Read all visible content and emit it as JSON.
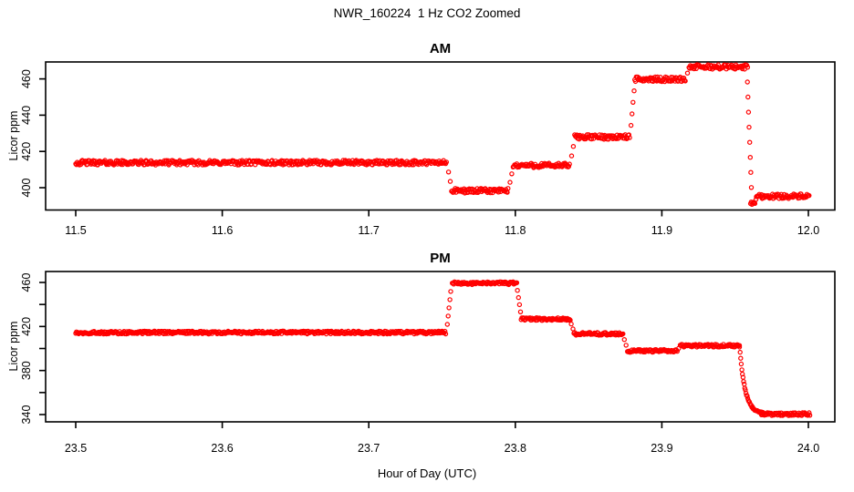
{
  "title": "NWR_160224  1 Hz CO2 Zoomed",
  "xlabel": "Hour of Day (UTC)",
  "style": {
    "point_color": "#FF0000",
    "axis_color": "#000000",
    "background": "#FFFFFF",
    "marker": "open-circle"
  },
  "chart_data": [
    {
      "type": "scatter",
      "panel_title": "AM",
      "ylabel": "Licor ppm",
      "xlim": [
        11.5,
        12.0
      ],
      "ylim": [
        387.7,
        469.3
      ],
      "grid": false,
      "legend": false,
      "xticks": [
        "11.5",
        "11.6",
        "11.7",
        "11.8",
        "11.9",
        "12.0"
      ],
      "yticks": [
        {
          "value": 400,
          "label": "400"
        },
        {
          "value": 420,
          "label": "420"
        },
        {
          "value": 440,
          "label": "440"
        },
        {
          "value": 460,
          "label": "460"
        }
      ],
      "segments_ppm": [
        {
          "t0": 11.5,
          "t1": 11.7535,
          "ppm": 413.8
        },
        {
          "t0": 11.7565,
          "t1": 11.7955,
          "ppm": 398.3
        },
        {
          "t0": 11.7985,
          "t1": 11.8375,
          "ppm": 412.3
        },
        {
          "t0": 11.8405,
          "t1": 11.8785,
          "ppm": 428.0
        },
        {
          "t0": 11.8815,
          "t1": 11.9165,
          "ppm": 459.8
        },
        {
          "t0": 11.9185,
          "t1": 11.959,
          "ppm": 466.6
        },
        {
          "t0": 11.9605,
          "t1": 11.964,
          "ppm": 391.8
        },
        {
          "t0": 11.9645,
          "t1": 12.001,
          "ppm": 395.3
        }
      ],
      "decay": null
    },
    {
      "type": "scatter",
      "panel_title": "PM",
      "ylabel": "Licor ppm",
      "xlim": [
        23.5,
        24.0
      ],
      "ylim": [
        333.4,
        469.9
      ],
      "grid": false,
      "legend": false,
      "xticks": [
        "23.5",
        "23.6",
        "23.7",
        "23.8",
        "23.9",
        "24.0"
      ],
      "yticks": [
        {
          "value": 340,
          "label": "340"
        },
        {
          "value": 360,
          "label": ""
        },
        {
          "value": 380,
          "label": "380"
        },
        {
          "value": 400,
          "label": ""
        },
        {
          "value": 420,
          "label": "420"
        },
        {
          "value": 440,
          "label": ""
        },
        {
          "value": 460,
          "label": "460"
        }
      ],
      "segments_ppm": [
        {
          "t0": 23.5,
          "t1": 23.7525,
          "ppm": 414.5
        },
        {
          "t0": 23.757,
          "t1": 23.801,
          "ppm": 459.3
        },
        {
          "t0": 23.804,
          "t1": 23.8375,
          "ppm": 426.8
        },
        {
          "t0": 23.84,
          "t1": 23.8735,
          "ppm": 413.3
        },
        {
          "t0": 23.8765,
          "t1": 23.9105,
          "ppm": 397.8
        },
        {
          "t0": 23.9125,
          "t1": 23.953,
          "ppm": 402.6,
          "join": "none"
        },
        {
          "t0": 23.968,
          "t1": 24.001,
          "ppm": 340.4
        }
      ],
      "decay": {
        "t_start": 23.953,
        "t_end": 23.969,
        "from_ppm": 402.6,
        "to_ppm": 340.4,
        "tau_hours": 0.0038
      }
    }
  ]
}
